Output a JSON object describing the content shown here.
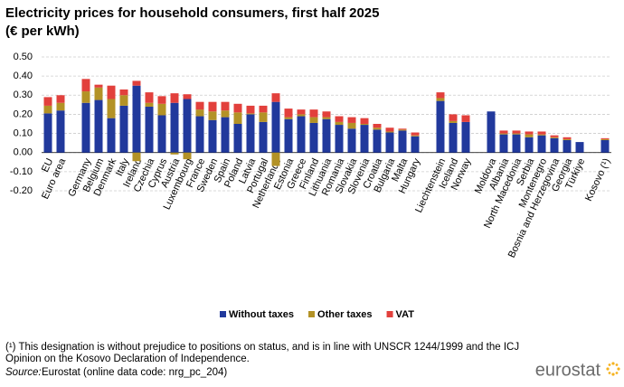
{
  "chart_data": {
    "type": "stacked-bar",
    "title": "Electricity prices for household consumers, first half 2025",
    "subtitle": "(€ per kWh)",
    "categories": [
      "EU",
      "Euro area",
      null,
      "Germany",
      "Belgium",
      "Denmark",
      "Italy",
      "Ireland",
      "Czechia",
      "Cyprus",
      "Austria",
      "Luxembourg",
      "France",
      "Sweden",
      "Spain",
      "Poland",
      "Latvia",
      "Portugal",
      "Netherlands",
      "Estonia",
      "Greece",
      "Finland",
      "Lithuania",
      "Romania",
      "Slovakia",
      "Slovenia",
      "Croatia",
      "Bulgaria",
      "Malta",
      "Hungary",
      null,
      "Liechtenstein",
      "Iceland",
      "Norway",
      null,
      "Moldova",
      "Albania",
      "North Macedonia",
      "Serbia",
      "Montenegro",
      "Bosnia and Herzegovina",
      "Georgia",
      "Türkiye",
      null,
      "Kosovo (¹)"
    ],
    "series": [
      {
        "name": "Without taxes",
        "color": "#21399c",
        "values": [
          0.205,
          0.22,
          null,
          0.26,
          0.275,
          0.18,
          0.245,
          0.35,
          0.24,
          0.195,
          0.26,
          0.28,
          0.19,
          0.17,
          0.185,
          0.15,
          0.2,
          0.16,
          0.265,
          0.175,
          0.19,
          0.155,
          0.175,
          0.145,
          0.125,
          0.145,
          0.12,
          0.105,
          0.115,
          0.085,
          null,
          0.27,
          0.155,
          0.16,
          null,
          0.215,
          0.095,
          0.095,
          0.08,
          0.09,
          0.075,
          0.065,
          0.055,
          null,
          0.065
        ]
      },
      {
        "name": "Other taxes",
        "color": "#b39226",
        "values": [
          0.04,
          0.04,
          null,
          0.06,
          0.065,
          0.1,
          0.055,
          -0.045,
          0.02,
          0.06,
          -0.01,
          -0.035,
          0.035,
          0.045,
          0.035,
          0.06,
          0.005,
          0.05,
          -0.07,
          0.01,
          0.01,
          0.03,
          0.01,
          0.015,
          0.03,
          0.005,
          0.01,
          0.005,
          0.005,
          0.005,
          null,
          0.015,
          0.01,
          0,
          null,
          0,
          0.005,
          0.005,
          0.015,
          0.005,
          0.005,
          0.005,
          0,
          null,
          0.005
        ]
      },
      {
        "name": "VAT",
        "color": "#e2403c",
        "values": [
          0.045,
          0.04,
          null,
          0.065,
          0.015,
          0.07,
          0.03,
          0.025,
          0.055,
          0.04,
          0.05,
          0.025,
          0.04,
          0.05,
          0.045,
          0.045,
          0.04,
          0.035,
          0.045,
          0.045,
          0.025,
          0.04,
          0.03,
          0.03,
          0.03,
          0.03,
          0.02,
          0.02,
          0.005,
          0.015,
          null,
          0.03,
          0.035,
          0.035,
          null,
          0,
          0.015,
          0.015,
          0.015,
          0.015,
          0.01,
          0.01,
          0,
          null,
          0.005
        ]
      }
    ],
    "ylim": [
      -0.2,
      0.5
    ],
    "yticks": [
      {
        "value": -0.2,
        "label": "-0.20"
      },
      {
        "value": -0.1,
        "label": "-0.10"
      },
      {
        "value": 0,
        "label": "0.00"
      },
      {
        "value": 0.1,
        "label": "0.10"
      },
      {
        "value": 0.2,
        "label": "0.20"
      },
      {
        "value": 0.3,
        "label": "0.30"
      },
      {
        "value": 0.4,
        "label": "0.40"
      },
      {
        "value": 0.5,
        "label": "0.50"
      }
    ],
    "grid": true,
    "legend": "bottom",
    "footnotes": [
      "(¹) This designation is without prejudice to positions on status, and is in line with UNSCR 1244/1999 and the ICJ",
      "Opinion on the Kosovo Declaration of Independence."
    ],
    "source_label": "Source:",
    "source": "Eurostat (online data code: nrg_pc_204)",
    "logo": "eurostat"
  }
}
